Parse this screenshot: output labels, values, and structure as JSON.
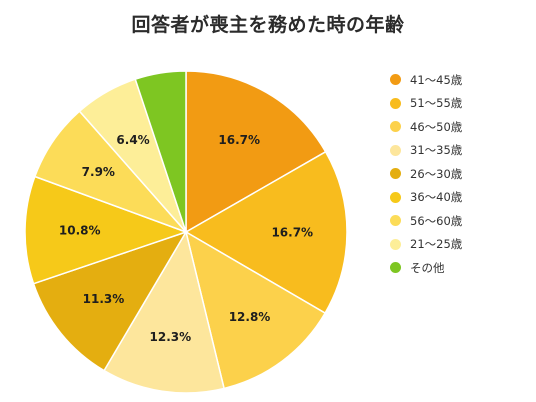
{
  "chart_data": {
    "type": "pie",
    "title": "回答者が喪主を務めた時の年齢",
    "slices": [
      {
        "label": "41〜45歳",
        "value": 16.7,
        "display": "16.7%",
        "color": "#f29b13"
      },
      {
        "label": "51〜55歳",
        "value": 16.7,
        "display": "16.7%",
        "color": "#f8bc1e"
      },
      {
        "label": "46〜50歳",
        "value": 12.8,
        "display": "12.8%",
        "color": "#fcd14b"
      },
      {
        "label": "31〜35歳",
        "value": 12.3,
        "display": "12.3%",
        "color": "#fde69c"
      },
      {
        "label": "26〜30歳",
        "value": 11.3,
        "display": "11.3%",
        "color": "#e4ae10"
      },
      {
        "label": "36〜40歳",
        "value": 10.8,
        "display": "10.8%",
        "color": "#f6c919"
      },
      {
        "label": "56〜60歳",
        "value": 7.9,
        "display": "7.9%",
        "color": "#fcdc58"
      },
      {
        "label": "21〜25歳",
        "value": 6.4,
        "display": "6.4%",
        "color": "#fdee98"
      },
      {
        "label": "その他",
        "value": 5.1,
        "display": "",
        "color": "#7ec622"
      }
    ],
    "legend_position": "right"
  }
}
